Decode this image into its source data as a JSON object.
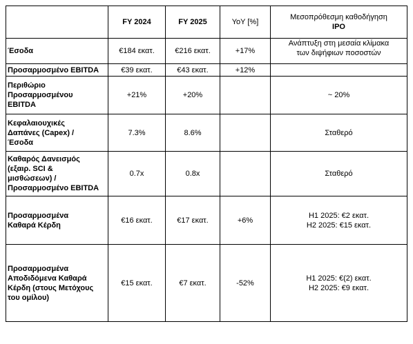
{
  "table": {
    "headers": {
      "metric": "",
      "fy2024": "FY 2024",
      "fy2025": "FY 2025",
      "yoy": "YoY [%]",
      "guidance_line1": "Μεσοπρόθεσμη καθοδήγηση",
      "guidance_line2": "IPO"
    },
    "rows": [
      {
        "metric": [
          "Έσοδα"
        ],
        "fy2024": "€184 εκατ.",
        "fy2025": "€216 εκατ.",
        "yoy": "+17%",
        "guidance": [
          "Ανάπτυξη στη μεσαία κλίμακα",
          "των διψήφιων ποσοστών"
        ]
      },
      {
        "metric": [
          "Προσαρμοσμένο EBITDA"
        ],
        "fy2024": "€39 εκατ.",
        "fy2025": "€43 εκατ.",
        "yoy": "+12%",
        "guidance": []
      },
      {
        "metric": [
          "Περιθώριο",
          "Προσαρμοσμένου",
          "EBITDA"
        ],
        "fy2024": "+21%",
        "fy2025": "+20%",
        "yoy": "",
        "guidance": [
          "~ 20%"
        ]
      },
      {
        "metric": [
          "Κεφαλαιουχικές",
          "Δαπάνες (Capex) /",
          "Έσοδα"
        ],
        "fy2024": "7.3%",
        "fy2025": "8.6%",
        "yoy": "",
        "guidance": [
          "Σταθερό"
        ]
      },
      {
        "metric": [
          "Καθαρός Δανεισμός",
          "(εξαιρ. SCI &",
          "μισθώσεων) /",
          "Προσαρμοσμένο EBITDA"
        ],
        "fy2024": "0.7x",
        "fy2025": "0.8x",
        "yoy": "",
        "guidance": [
          "Σταθερό"
        ]
      },
      {
        "metric": [
          "Προσαρμοσμένα",
          "Καθαρά Κέρδη"
        ],
        "fy2024": "€16 εκατ.",
        "fy2025": "€17 εκατ.",
        "yoy": "+6%",
        "guidance": [
          "H1 2025: €2 εκατ.",
          "H2 2025: €15 εκατ."
        ]
      },
      {
        "metric": [
          "Προσαρμοσμένα",
          "Αποδιδόμενα Καθαρά",
          "Κέρδη (στους Μετόχους",
          "του ομίλου)"
        ],
        "fy2024": "€15 εκατ.",
        "fy2025": "€7 εκατ.",
        "yoy": "-52%",
        "guidance": [
          "H1 2025: €(2) εκατ.",
          "H2 2025: €9 εκατ."
        ]
      }
    ]
  }
}
